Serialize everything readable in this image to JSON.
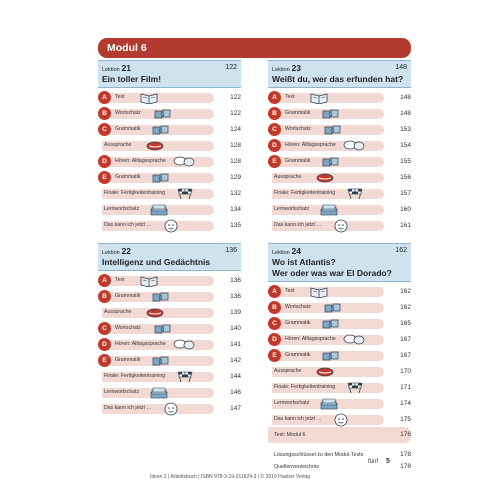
{
  "modul_title": "Modul 6",
  "lesson_label": "Lektion",
  "lessons": [
    {
      "number": "21",
      "page": "122",
      "title": "Ein toller Film!",
      "rows": [
        {
          "letter": "A",
          "label": "Text",
          "icon": "book-icon",
          "page": "122"
        },
        {
          "letter": "B",
          "label": "Wortschatz",
          "icon": "puzzle-icon",
          "page": "122"
        },
        {
          "letter": "C",
          "label": "Grammatik",
          "icon": "puzzle-icon",
          "page": "124"
        },
        {
          "letter": "",
          "label": "Aussprache",
          "icon": "mouth-icon",
          "page": "128"
        },
        {
          "letter": "D",
          "label": "Hören: Alltagssprache",
          "icon": "speech-bubble-icon",
          "page": "128"
        },
        {
          "letter": "E",
          "label": "Grammatik",
          "icon": "puzzle-icon",
          "page": "129"
        },
        {
          "letter": "",
          "label": "Finale: Fertigkeitentraining",
          "icon": "checkered-flag-icon",
          "page": "132"
        },
        {
          "letter": "",
          "label": "Lernwortschatz",
          "icon": "index-cards-icon",
          "page": "134"
        },
        {
          "letter": "",
          "label": "Das kann ich jetzt …",
          "icon": "face-icon",
          "page": "135"
        }
      ]
    },
    {
      "number": "22",
      "page": "136",
      "title": "Intelligenz und Gedächtnis",
      "rows": [
        {
          "letter": "A",
          "label": "Text",
          "icon": "book-icon",
          "page": "136"
        },
        {
          "letter": "B",
          "label": "Grammatik",
          "icon": "puzzle-icon",
          "page": "136"
        },
        {
          "letter": "",
          "label": "Aussprache",
          "icon": "mouth-icon",
          "page": "139"
        },
        {
          "letter": "C",
          "label": "Wortschatz",
          "icon": "puzzle-icon",
          "page": "140"
        },
        {
          "letter": "D",
          "label": "Hören: Alltagssprache",
          "icon": "speech-bubble-icon",
          "page": "141"
        },
        {
          "letter": "E",
          "label": "Grammatik",
          "icon": "puzzle-icon",
          "page": "142"
        },
        {
          "letter": "",
          "label": "Finale: Fertigkeitentraining",
          "icon": "checkered-flag-icon",
          "page": "144"
        },
        {
          "letter": "",
          "label": "Lernwortschatz",
          "icon": "index-cards-icon",
          "page": "146"
        },
        {
          "letter": "",
          "label": "Das kann ich jetzt …",
          "icon": "face-icon",
          "page": "147"
        }
      ]
    },
    {
      "number": "23",
      "page": "148",
      "title": "Weißt du, wer das erfunden hat?",
      "rows": [
        {
          "letter": "A",
          "label": "Text",
          "icon": "book-icon",
          "page": "148"
        },
        {
          "letter": "B",
          "label": "Grammatik",
          "icon": "puzzle-icon",
          "page": "148"
        },
        {
          "letter": "C",
          "label": "Wortschatz",
          "icon": "puzzle-icon",
          "page": "153"
        },
        {
          "letter": "D",
          "label": "Hören: Alltagssprache",
          "icon": "speech-bubble-icon",
          "page": "154"
        },
        {
          "letter": "E",
          "label": "Grammatik",
          "icon": "puzzle-icon",
          "page": "155"
        },
        {
          "letter": "",
          "label": "Aussprache",
          "icon": "mouth-icon",
          "page": "156"
        },
        {
          "letter": "",
          "label": "Finale: Fertigkeitentraining",
          "icon": "checkered-flag-icon",
          "page": "157"
        },
        {
          "letter": "",
          "label": "Lernwortschatz",
          "icon": "index-cards-icon",
          "page": "160"
        },
        {
          "letter": "",
          "label": "Das kann ich jetzt …",
          "icon": "face-icon",
          "page": "161"
        }
      ]
    },
    {
      "number": "24",
      "page": "162",
      "title": "Wo ist Atlantis?",
      "title2": "Wer oder was war El Dorado?",
      "rows": [
        {
          "letter": "A",
          "label": "Text",
          "icon": "book-icon",
          "page": "162"
        },
        {
          "letter": "B",
          "label": "Wortschatz",
          "icon": "puzzle-icon",
          "page": "162"
        },
        {
          "letter": "C",
          "label": "Grammatik",
          "icon": "puzzle-icon",
          "page": "165"
        },
        {
          "letter": "D",
          "label": "Hören: Alltagssprache",
          "icon": "speech-bubble-icon",
          "page": "167"
        },
        {
          "letter": "E",
          "label": "Grammatik",
          "icon": "puzzle-icon",
          "page": "167"
        },
        {
          "letter": "",
          "label": "Aussprache",
          "icon": "mouth-icon",
          "page": "170"
        },
        {
          "letter": "",
          "label": "Finale: Fertigkeitentraining",
          "icon": "checkered-flag-icon",
          "page": "171"
        },
        {
          "letter": "",
          "label": "Lernwortschatz",
          "icon": "index-cards-icon",
          "page": "174"
        },
        {
          "letter": "",
          "label": "Das kann ich jetzt …",
          "icon": "face-icon",
          "page": "175"
        }
      ]
    }
  ],
  "test": {
    "label": "Test: Modul 6",
    "page": "176"
  },
  "extras": [
    {
      "label": "Lösungsschlüssel zu den Modul-Tests",
      "page": "178"
    },
    {
      "label": "Quellenverzeichnis",
      "page": "178"
    }
  ],
  "footer": "Ideen 2 | Arbeitsbuch | ISBN 978-3-19-011824-3 | © 2010 Hueber Verlag",
  "folio": {
    "word": "fünf",
    "number": "5"
  },
  "colors": {
    "accent": "#b23a2f",
    "lesson_bg": "#cfe3ef",
    "row_bg": "#f3d9d3"
  }
}
